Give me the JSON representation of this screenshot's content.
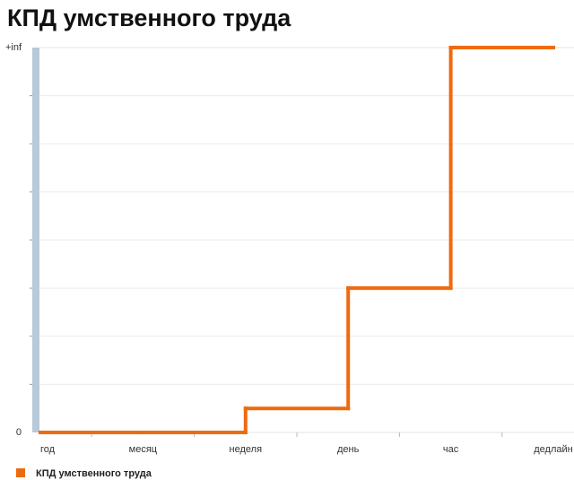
{
  "chart_data": {
    "type": "step",
    "title": "КПД умственного труда",
    "categories": [
      "год",
      "месяц",
      "неделя",
      "день",
      "час",
      "дедлайн"
    ],
    "series": [
      {
        "name": "КПД умственного труда",
        "color": "#ee6a10",
        "values": [
          0,
          0,
          0.5,
          3,
          8,
          8
        ]
      }
    ],
    "ylim": [
      0,
      8
    ],
    "yticks": [
      0,
      {
        "value": 8,
        "label": "+inf"
      }
    ],
    "y_minor_ticks": [
      1,
      2,
      3,
      4,
      5,
      6,
      7
    ],
    "grid": true
  }
}
